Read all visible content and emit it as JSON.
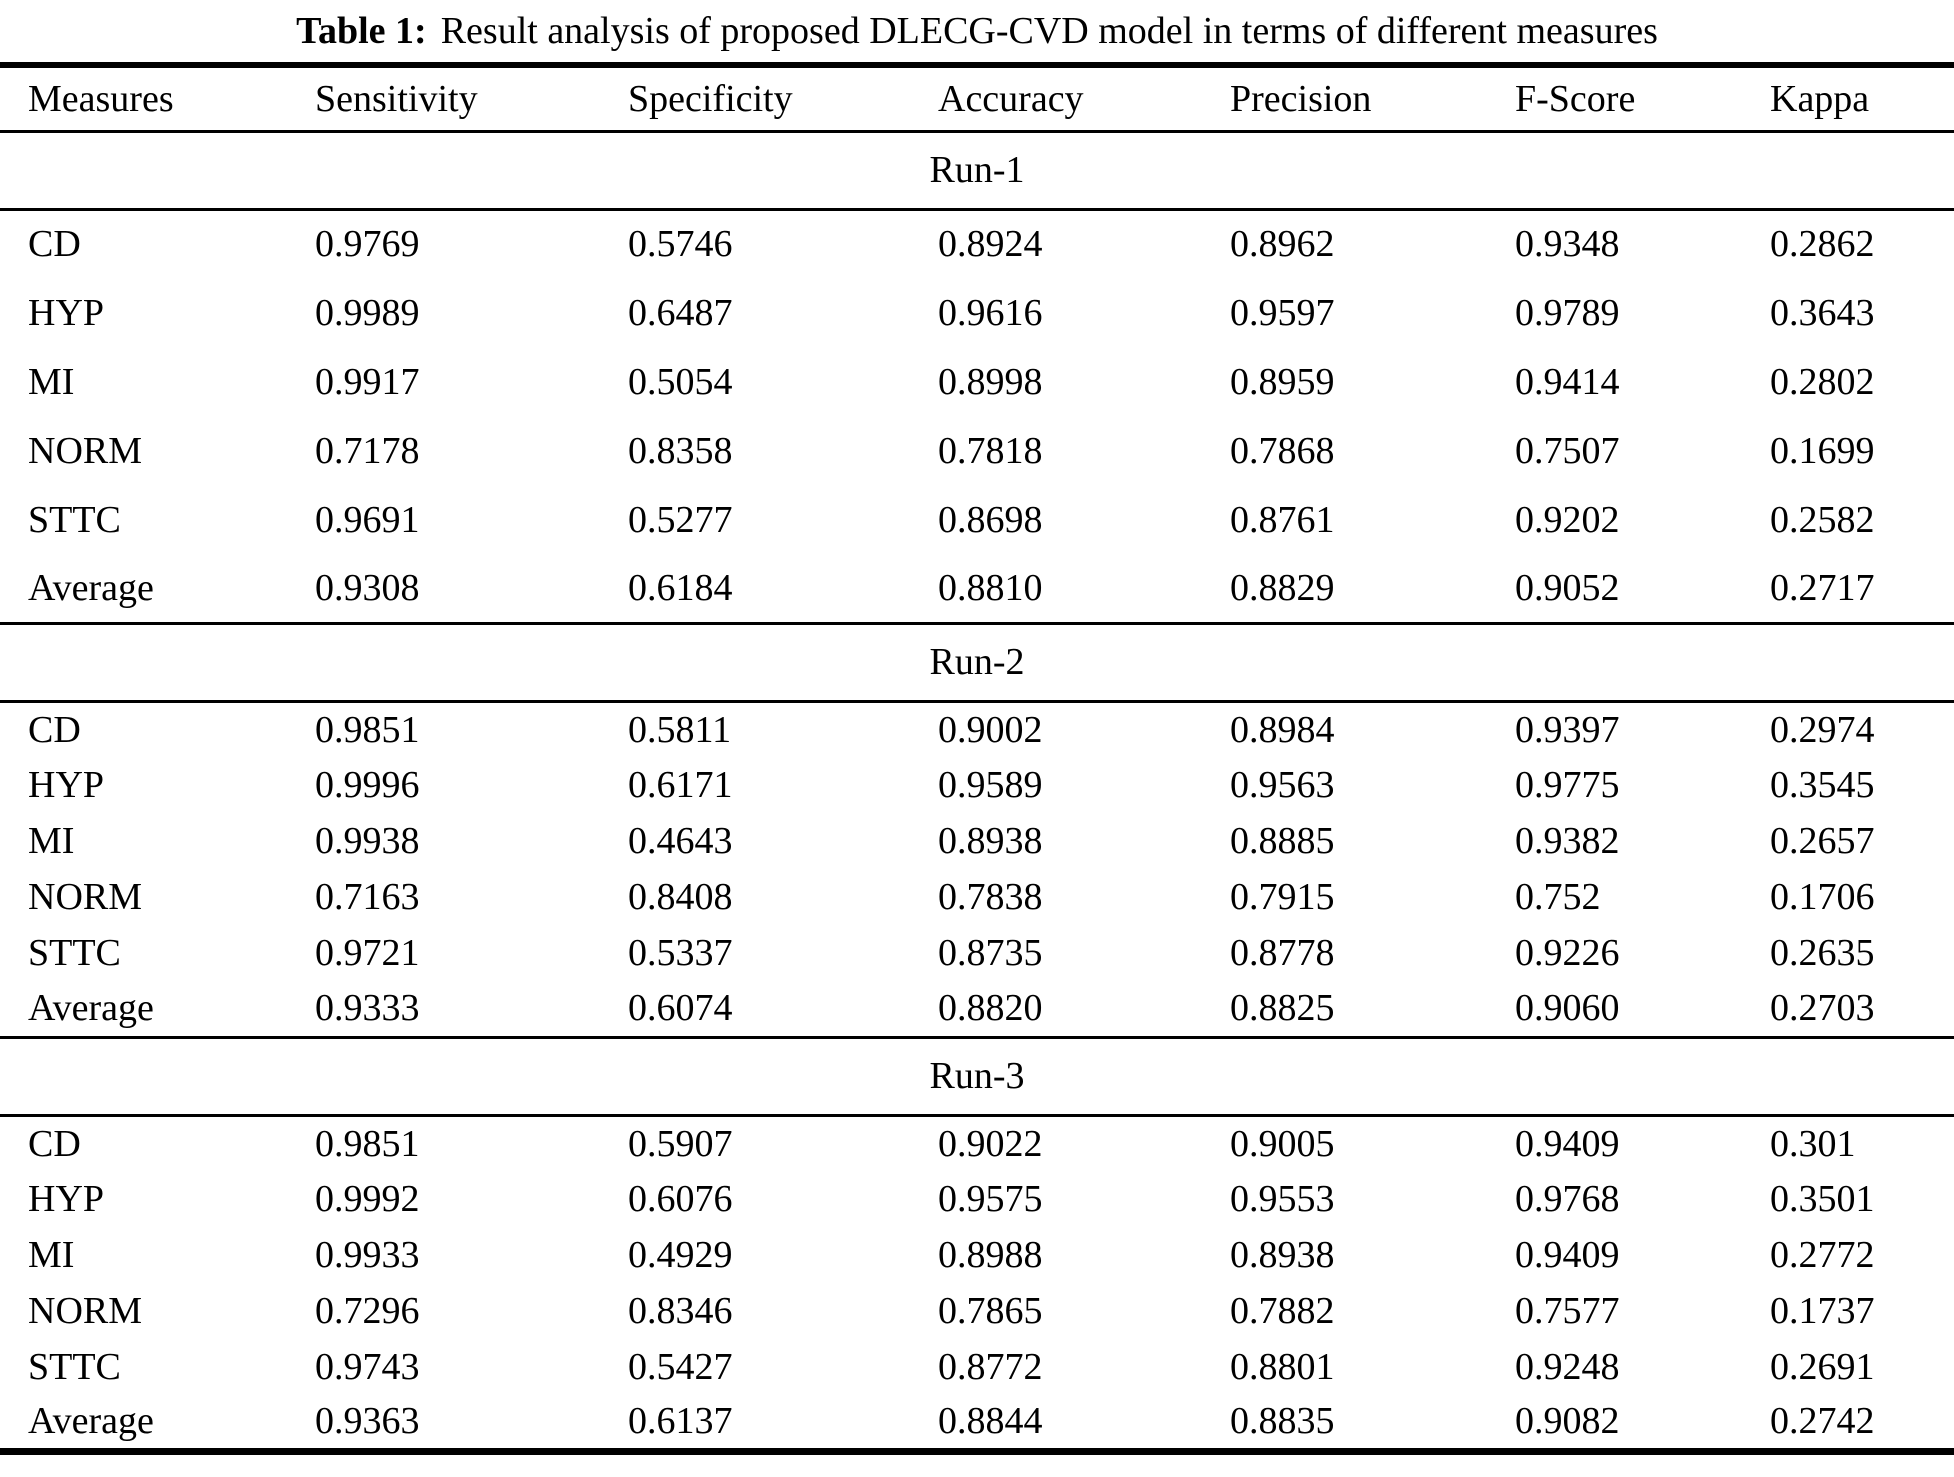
{
  "page": {
    "background": "#ffffff",
    "text_color": "#000000",
    "rule_color": "#000000"
  },
  "caption": {
    "label": "Table 1:",
    "text": "Result analysis of proposed DLECG-CVD model in terms of different measures"
  },
  "table": {
    "columns": [
      "Measures",
      "Sensitivity",
      "Specificity",
      "Accuracy",
      "Precision",
      "F-Score",
      "Kappa"
    ],
    "sections": [
      {
        "label": "Run-1",
        "rows": [
          {
            "measure": "CD",
            "values": [
              "0.9769",
              "0.5746",
              "0.8924",
              "0.8962",
              "0.9348",
              "0.2862"
            ]
          },
          {
            "measure": "HYP",
            "values": [
              "0.9989",
              "0.6487",
              "0.9616",
              "0.9597",
              "0.9789",
              "0.3643"
            ]
          },
          {
            "measure": "MI",
            "values": [
              "0.9917",
              "0.5054",
              "0.8998",
              "0.8959",
              "0.9414",
              "0.2802"
            ]
          },
          {
            "measure": "NORM",
            "values": [
              "0.7178",
              "0.8358",
              "0.7818",
              "0.7868",
              "0.7507",
              "0.1699"
            ]
          },
          {
            "measure": "STTC",
            "values": [
              "0.9691",
              "0.5277",
              "0.8698",
              "0.8761",
              "0.9202",
              "0.2582"
            ]
          },
          {
            "measure": "Average",
            "values": [
              "0.9308",
              "0.6184",
              "0.8810",
              "0.8829",
              "0.9052",
              "0.2717"
            ]
          }
        ]
      },
      {
        "label": "Run-2",
        "rows": [
          {
            "measure": "CD",
            "values": [
              "0.9851",
              "0.5811",
              "0.9002",
              "0.8984",
              "0.9397",
              "0.2974"
            ]
          },
          {
            "measure": "HYP",
            "values": [
              "0.9996",
              "0.6171",
              "0.9589",
              "0.9563",
              "0.9775",
              "0.3545"
            ]
          },
          {
            "measure": "MI",
            "values": [
              "0.9938",
              "0.4643",
              "0.8938",
              "0.8885",
              "0.9382",
              "0.2657"
            ]
          },
          {
            "measure": "NORM",
            "values": [
              "0.7163",
              "0.8408",
              "0.7838",
              "0.7915",
              "0.752",
              "0.1706"
            ]
          },
          {
            "measure": "STTC",
            "values": [
              "0.9721",
              "0.5337",
              "0.8735",
              "0.8778",
              "0.9226",
              "0.2635"
            ]
          },
          {
            "measure": "Average",
            "values": [
              "0.9333",
              "0.6074",
              "0.8820",
              "0.8825",
              "0.9060",
              "0.2703"
            ]
          }
        ]
      },
      {
        "label": "Run-3",
        "rows": [
          {
            "measure": "CD",
            "values": [
              "0.9851",
              "0.5907",
              "0.9022",
              "0.9005",
              "0.9409",
              "0.301"
            ]
          },
          {
            "measure": "HYP",
            "values": [
              "0.9992",
              "0.6076",
              "0.9575",
              "0.9553",
              "0.9768",
              "0.3501"
            ]
          },
          {
            "measure": "MI",
            "values": [
              "0.9933",
              "0.4929",
              "0.8988",
              "0.8938",
              "0.9409",
              "0.2772"
            ]
          },
          {
            "measure": "NORM",
            "values": [
              "0.7296",
              "0.8346",
              "0.7865",
              "0.7882",
              "0.7577",
              "0.1737"
            ]
          },
          {
            "measure": "STTC",
            "values": [
              "0.9743",
              "0.5427",
              "0.8772",
              "0.8801",
              "0.9248",
              "0.2691"
            ]
          },
          {
            "measure": "Average",
            "values": [
              "0.9363",
              "0.6137",
              "0.8844",
              "0.8835",
              "0.9082",
              "0.2742"
            ]
          }
        ]
      }
    ]
  }
}
